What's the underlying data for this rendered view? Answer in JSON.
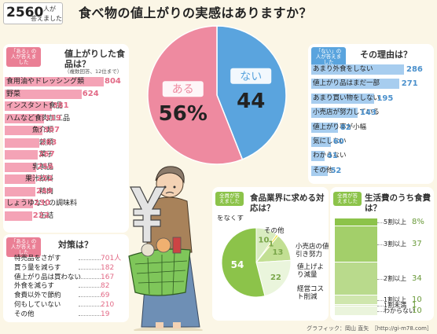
{
  "header": {
    "count_number": "2560",
    "count_suffix_1": "人が",
    "count_suffix_2": "答えました",
    "title": "食べ物の値上がりの実感はありますか？"
  },
  "chart_data": [
    {
      "type": "pie",
      "labels": [
        "ある",
        "ない"
      ],
      "values": [
        56,
        44
      ],
      "value_texts": [
        "56%",
        "44"
      ],
      "colors": [
        "#ee8aa0",
        "#5aa4de"
      ]
    },
    {
      "type": "bar",
      "title": "値上がりした食品は？",
      "subtitle": "（複数回答、12位まで）",
      "tag": "「ある」の人が答えました",
      "categories": [
        "食用油やドレッシング類",
        "野菜",
        "インスタント食品",
        "ハムなど食肉加工品",
        "魚介類",
        "穀類",
        "菓子",
        "乳製品",
        "果汁飲料",
        "精肉",
        "しょうゆなどの調味料",
        "缶詰"
      ],
      "values": [
        804,
        624,
        381,
        319,
        307,
        283,
        267,
        256,
        252,
        249,
        230,
        222
      ],
      "color": "#f4a3b6"
    },
    {
      "type": "bar",
      "title": "その理由は？",
      "tag": "「ない」の人が答えました",
      "categories": [
        "あまり外食をしない",
        "値上がり品はまだ一部",
        "あまり買い物をしない",
        "小売店が努力している",
        "値上がり率が小幅",
        "気にしない",
        "わからない",
        "その他"
      ],
      "values": [
        286,
        271,
        195,
        143,
        82,
        60,
        41,
        52
      ],
      "color": "#a7cdef"
    },
    {
      "type": "table",
      "title": "対策は？",
      "tag": "「ある」の人が答えました",
      "categories": [
        "特売品をさがす",
        "買う量を減らす",
        "値上がり品は買わない",
        "外食を減らす",
        "食費以外で節約",
        "何もしていない",
        "その他"
      ],
      "values": [
        701,
        182,
        167,
        82,
        69,
        210,
        19
      ],
      "value_suffix_first": "人"
    },
    {
      "type": "pie",
      "title": "食品業界に求める対応は？",
      "tag": "全員が答えました",
      "labels": [
        "過剰包装をなくす",
        "その他",
        "小売店の値引き努力",
        "値上げより減量",
        "経営コスト削減"
      ],
      "values": [
        54,
        10,
        1,
        13,
        22
      ],
      "colors": [
        "#8cc34a",
        "#d9ecc1",
        "#f2e64c",
        "#c2df93",
        "#eaf5dc"
      ]
    },
    {
      "type": "bar",
      "title": "生活費のうち食費は？",
      "tag": "全員が答えました",
      "categories": [
        "5割以上",
        "3割以上",
        "2割以上",
        "1割以上",
        "1割未満",
        "わからない"
      ],
      "values": [
        8,
        37,
        34,
        10,
        1,
        10
      ],
      "value_suffix_first": "%",
      "color": "#8cc34a"
    }
  ],
  "footer": {
    "credit": "グラフィック：岡山 直矢　［http://gi-m78.com］"
  }
}
